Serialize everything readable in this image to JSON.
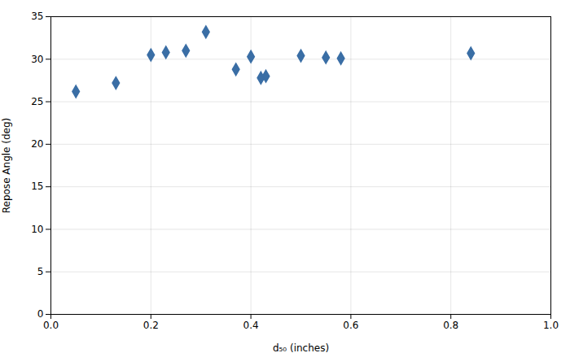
{
  "chart_data": {
    "type": "scatter",
    "x": [
      0.05,
      0.13,
      0.2,
      0.23,
      0.27,
      0.31,
      0.37,
      0.4,
      0.42,
      0.43,
      0.5,
      0.55,
      0.58,
      0.84
    ],
    "values": [
      26.2,
      27.2,
      30.5,
      30.8,
      31.0,
      33.2,
      28.8,
      30.3,
      27.8,
      28.0,
      30.4,
      30.2,
      30.1,
      30.7
    ],
    "color": "#3A6EA5",
    "marker": "diamond",
    "xlabel": "d₅₀ (inches)",
    "ylabel": "Repose Angle (deg)",
    "xlim": [
      0,
      1.0
    ],
    "ylim": [
      0,
      35
    ],
    "xticks": [
      {
        "value": 0,
        "label": "0.0"
      },
      0.2,
      0.4,
      0.6,
      0.8,
      {
        "value": 1.0,
        "label": "1.0"
      }
    ],
    "yticks": [
      0,
      5,
      10,
      15,
      20,
      25,
      30,
      35
    ],
    "grid": true
  }
}
